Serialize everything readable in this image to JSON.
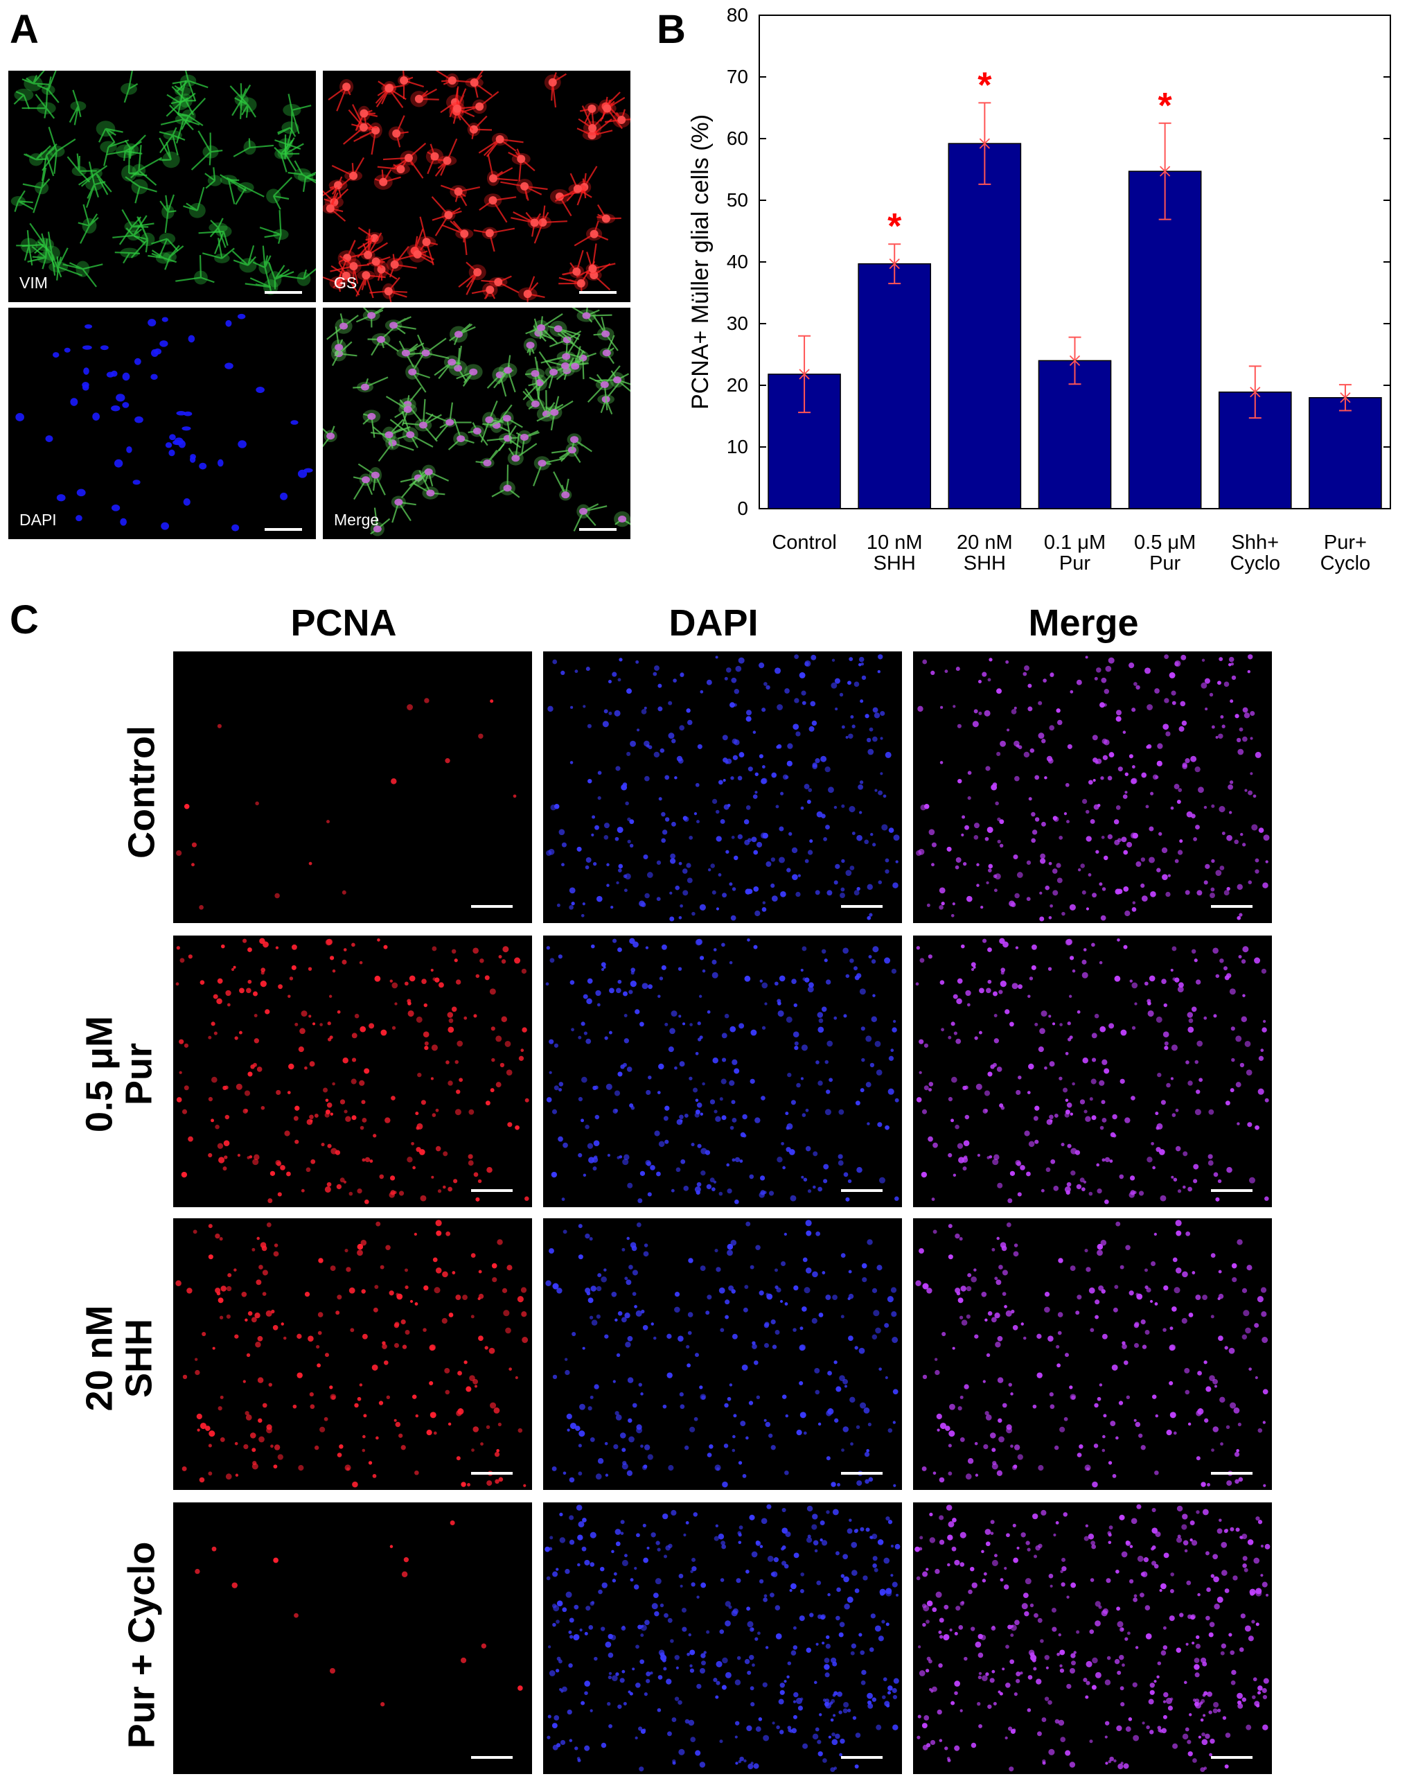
{
  "panel_letters": {
    "a": "A",
    "b": "B",
    "c": "C"
  },
  "panel_a": {
    "tiles": [
      {
        "label": "VIM",
        "channel_color": "#2ecc40"
      },
      {
        "label": "GS",
        "channel_color": "#ff2020"
      },
      {
        "label": "DAPI",
        "channel_color": "#1a1aff"
      },
      {
        "label": "Merge",
        "channel_color": "#c86ad8"
      }
    ]
  },
  "chart_data": {
    "type": "bar",
    "title": "",
    "xlabel": "",
    "ylabel": "PCNA+ Müller glial cells (%)",
    "ylim": [
      0,
      80
    ],
    "yticks": [
      0,
      10,
      20,
      30,
      40,
      50,
      60,
      70,
      80
    ],
    "categories": [
      [
        "Control"
      ],
      [
        "10 nM",
        "SHH"
      ],
      [
        "20 nM",
        "SHH"
      ],
      [
        "0.1 μM",
        "Pur"
      ],
      [
        "0.5 μM",
        "Pur"
      ],
      [
        "Shh+",
        "Cyclo"
      ],
      [
        "Pur+",
        "Cyclo"
      ]
    ],
    "values": [
      21.8,
      39.7,
      59.2,
      24.0,
      54.7,
      18.9,
      18.0
    ],
    "errors": [
      6.2,
      3.2,
      6.6,
      3.8,
      7.8,
      4.2,
      2.1
    ],
    "significance": [
      "",
      "*",
      "*",
      "",
      "*",
      "",
      ""
    ],
    "bar_color": "#000090",
    "error_color": "#ff5555",
    "significance_color": "#ff0000",
    "grid": false
  },
  "panel_c": {
    "columns": [
      "PCNA",
      "DAPI",
      "Merge"
    ],
    "rows": [
      {
        "label_lines": [
          "Control"
        ],
        "density": [
          18,
          320,
          320
        ]
      },
      {
        "label_lines": [
          "0.5 μM",
          "Pur"
        ],
        "density": [
          260,
          300,
          300
        ]
      },
      {
        "label_lines": [
          "20 nM",
          "SHH"
        ],
        "density": [
          230,
          260,
          260
        ]
      },
      {
        "label_lines": [
          "Pur + Cyclo"
        ],
        "density": [
          14,
          420,
          420
        ]
      }
    ],
    "channel_colors": [
      "#ff2030",
      "#3a3aff",
      "#c040ff"
    ]
  }
}
